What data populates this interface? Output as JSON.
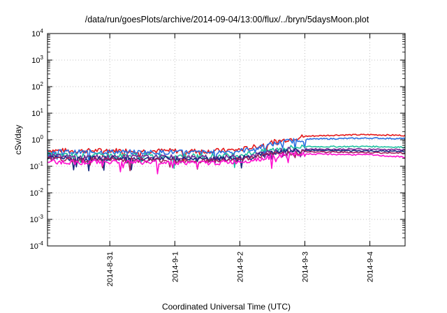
{
  "chart_data": {
    "type": "line",
    "title": "/data/run/goesPlots/archive/2014-09-04/13:00/flux/../bryn/5daysMoon.plot",
    "xlabel": "Coordinated Universal Time (UTC)",
    "ylabel": "cSv/day",
    "xlim": [
      "2014-08-30T01:00",
      "2014-09-04T13:00"
    ],
    "ylim": [
      0.0001,
      10000
    ],
    "yscale": "log",
    "grid": true,
    "legend": "none",
    "x_ticks": [
      "2014-8-31",
      "2014-9-1",
      "2014-9-2",
      "2014-9-3",
      "2014-9-4"
    ],
    "x_tick_dates": [
      "2014-08-31T00:00",
      "2014-09-01T00:00",
      "2014-09-02T00:00",
      "2014-09-03T00:00",
      "2014-09-04T00:00"
    ],
    "y_ticks": [
      {
        "value": 0.0001,
        "base": "10",
        "exp": "-4"
      },
      {
        "value": 0.001,
        "base": "10",
        "exp": "-3"
      },
      {
        "value": 0.01,
        "base": "10",
        "exp": "-2"
      },
      {
        "value": 0.1,
        "base": "10",
        "exp": "-1"
      },
      {
        "value": 1,
        "base": "10",
        "exp": "0"
      },
      {
        "value": 10,
        "base": "10",
        "exp": "1"
      },
      {
        "value": 100,
        "base": "10",
        "exp": "2"
      },
      {
        "value": 1000,
        "base": "10",
        "exp": "3"
      },
      {
        "value": 10000,
        "base": "10",
        "exp": "4"
      }
    ],
    "x": [
      "2014-08-30T01:00",
      "2014-08-30T12:00",
      "2014-08-31T00:00",
      "2014-08-31T12:00",
      "2014-09-01T00:00",
      "2014-09-01T12:00",
      "2014-09-02T00:00",
      "2014-09-02T06:00",
      "2014-09-02T12:00",
      "2014-09-02T18:00",
      "2014-09-03T00:00",
      "2014-09-03T12:00",
      "2014-09-04T00:00",
      "2014-09-04T13:00"
    ],
    "series": [
      {
        "color": "#e41a1c",
        "values": [
          0.4,
          0.38,
          0.4,
          0.38,
          0.38,
          0.37,
          0.42,
          0.55,
          0.8,
          1.05,
          1.35,
          1.5,
          1.55,
          1.45
        ]
      },
      {
        "color": "#2b6fe0",
        "values": [
          0.36,
          0.34,
          0.35,
          0.34,
          0.34,
          0.33,
          0.38,
          0.48,
          0.68,
          0.88,
          1.05,
          1.1,
          1.15,
          1.1
        ]
      },
      {
        "color": "#20c0a0",
        "values": [
          0.27,
          0.25,
          0.26,
          0.25,
          0.25,
          0.24,
          0.27,
          0.33,
          0.42,
          0.5,
          0.55,
          0.55,
          0.56,
          0.52
        ]
      },
      {
        "color": "#7a2a9a",
        "values": [
          0.24,
          0.22,
          0.23,
          0.22,
          0.22,
          0.21,
          0.23,
          0.28,
          0.35,
          0.42,
          0.45,
          0.44,
          0.44,
          0.42
        ]
      },
      {
        "color": "#1a2a80",
        "values": [
          0.21,
          0.19,
          0.2,
          0.19,
          0.19,
          0.18,
          0.2,
          0.25,
          0.31,
          0.37,
          0.4,
          0.39,
          0.38,
          0.36
        ]
      },
      {
        "color": "#a02060",
        "values": [
          0.19,
          0.17,
          0.18,
          0.17,
          0.17,
          0.16,
          0.18,
          0.22,
          0.28,
          0.32,
          0.35,
          0.34,
          0.33,
          0.31
        ]
      },
      {
        "color": "#ff10d0",
        "values": [
          0.15,
          0.14,
          0.15,
          0.14,
          0.14,
          0.13,
          0.15,
          0.18,
          0.23,
          0.27,
          0.29,
          0.28,
          0.27,
          0.22
        ]
      }
    ]
  }
}
